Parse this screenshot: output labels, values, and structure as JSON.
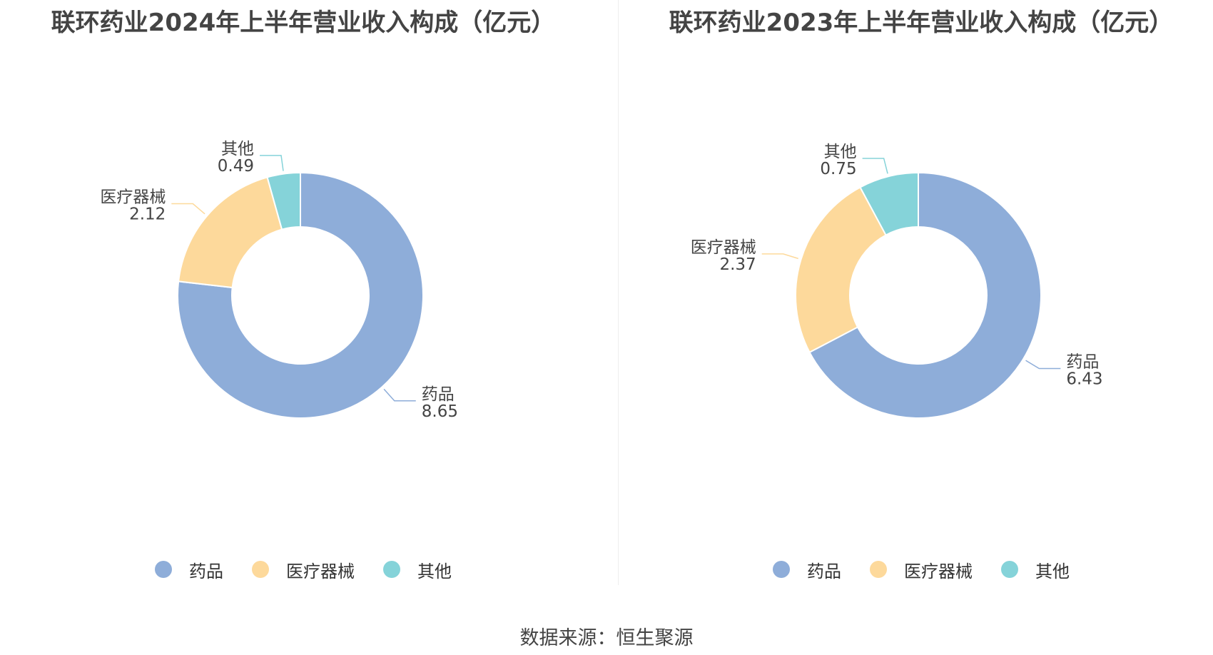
{
  "colors": {
    "药品": "#8eadd9",
    "医疗器械": "#fdd99b",
    "其他": "#85d3d9"
  },
  "source": "数据来源：恒生聚源",
  "chart_data": [
    {
      "type": "pie",
      "donut": true,
      "title": "联环药业2024年上半年营业收入构成（亿元）",
      "categories": [
        "药品",
        "医疗器械",
        "其他"
      ],
      "values": [
        8.65,
        2.12,
        0.49
      ],
      "labels": [
        "8.65",
        "2.12",
        "0.49"
      ],
      "legend": "bottom"
    },
    {
      "type": "pie",
      "donut": true,
      "title": "联环药业2023年上半年营业收入构成（亿元）",
      "categories": [
        "药品",
        "医疗器械",
        "其他"
      ],
      "values": [
        6.43,
        2.37,
        0.75
      ],
      "labels": [
        "6.43",
        "2.37",
        "0.75"
      ],
      "legend": "bottom"
    }
  ]
}
